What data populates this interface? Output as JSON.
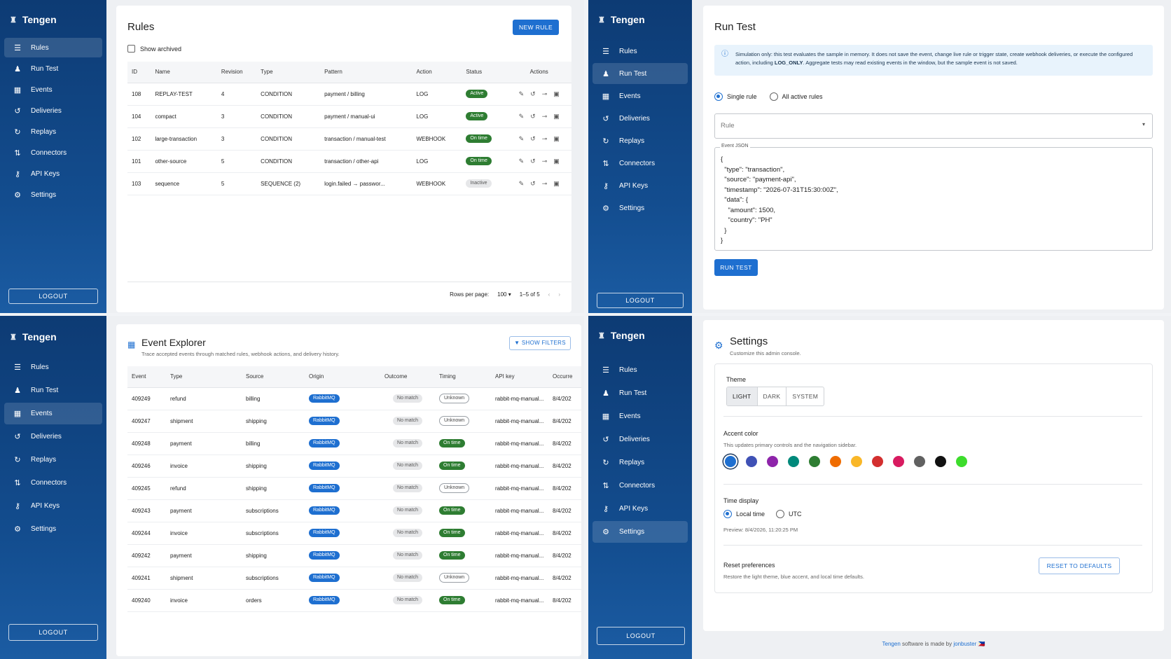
{
  "brand": "Tengen",
  "nav": {
    "rules": "Rules",
    "run_test": "Run Test",
    "events": "Events",
    "deliveries": "Deliveries",
    "replays": "Replays",
    "connectors": "Connectors",
    "api_keys": "API Keys",
    "settings": "Settings",
    "logout": "LOGOUT"
  },
  "rules_page": {
    "title": "Rules",
    "new_rule": "NEW RULE",
    "show_archived": "Show archived",
    "columns": [
      "ID",
      "Name",
      "Revision",
      "Type",
      "Pattern",
      "Action",
      "Status",
      "Actions"
    ],
    "rows": [
      {
        "id": "108",
        "name": "REPLAY-TEST",
        "revision": "4",
        "type": "CONDITION",
        "pattern": "payment / billing",
        "action": "LOG",
        "status": "Active",
        "status_style": "green"
      },
      {
        "id": "104",
        "name": "compact",
        "revision": "3",
        "type": "CONDITION",
        "pattern": "payment / manual-ui",
        "action": "LOG",
        "status": "Active",
        "status_style": "green"
      },
      {
        "id": "102",
        "name": "large-transaction",
        "revision": "3",
        "type": "CONDITION",
        "pattern": "transaction / manual-test",
        "action": "WEBHOOK",
        "status": "On time",
        "status_style": "green"
      },
      {
        "id": "101",
        "name": "other-source",
        "revision": "5",
        "type": "CONDITION",
        "pattern": "transaction / other-api",
        "action": "LOG",
        "status": "On time",
        "status_style": "green"
      },
      {
        "id": "103",
        "name": "sequence",
        "revision": "5",
        "type": "SEQUENCE (2)",
        "pattern": "login.failed → passwor...",
        "action": "WEBHOOK",
        "status": "Inactive",
        "status_style": "grey"
      }
    ],
    "rows_per_page_label": "Rows per page:",
    "rows_per_page": "100",
    "range": "1–5 of 5"
  },
  "run_test_page": {
    "title": "Run Test",
    "info_prefix": "Simulation only: this test evaluates the sample in memory. It does not save the event, change live rule or trigger state, create webhook deliveries, or execute the configured action, including ",
    "info_bold": "LOG_ONLY",
    "info_suffix": ". Aggregate tests may read existing events in the window, but the sample event is not saved.",
    "single_rule": "Single rule",
    "all_active_rules": "All active rules",
    "rule_placeholder": "Rule",
    "event_json_label": "Event JSON",
    "event_json": "{\n  \"type\": \"transaction\",\n  \"source\": \"payment-api\",\n  \"timestamp\": \"2026-07-31T15:30:00Z\",\n  \"data\": {\n    \"amount\": 1500,\n    \"country\": \"PH\"\n  }\n}",
    "run_test_button": "RUN TEST"
  },
  "events_page": {
    "title": "Event Explorer",
    "subtitle": "Trace accepted events through matched rules, webhook actions, and delivery history.",
    "show_filters": "SHOW FILTERS",
    "columns": [
      "Event",
      "Type",
      "Source",
      "Origin",
      "Outcome",
      "Timing",
      "API key",
      "Occurre"
    ],
    "rows": [
      {
        "event": "409249",
        "type": "refund",
        "source": "billing",
        "origin": "RabbitMQ",
        "outcome": "No match",
        "timing": "Unknown",
        "timing_style": "outline",
        "api_key": "rabbit-mq-manual...",
        "occurred": "8/4/202"
      },
      {
        "event": "409247",
        "type": "shipment",
        "source": "shipping",
        "origin": "RabbitMQ",
        "outcome": "No match",
        "timing": "Unknown",
        "timing_style": "outline",
        "api_key": "rabbit-mq-manual...",
        "occurred": "8/4/202"
      },
      {
        "event": "409248",
        "type": "payment",
        "source": "billing",
        "origin": "RabbitMQ",
        "outcome": "No match",
        "timing": "On time",
        "timing_style": "green",
        "api_key": "rabbit-mq-manual...",
        "occurred": "8/4/202"
      },
      {
        "event": "409246",
        "type": "invoice",
        "source": "shipping",
        "origin": "RabbitMQ",
        "outcome": "No match",
        "timing": "On time",
        "timing_style": "green",
        "api_key": "rabbit-mq-manual...",
        "occurred": "8/4/202"
      },
      {
        "event": "409245",
        "type": "refund",
        "source": "shipping",
        "origin": "RabbitMQ",
        "outcome": "No match",
        "timing": "Unknown",
        "timing_style": "outline",
        "api_key": "rabbit-mq-manual...",
        "occurred": "8/4/202"
      },
      {
        "event": "409243",
        "type": "payment",
        "source": "subscriptions",
        "origin": "RabbitMQ",
        "outcome": "No match",
        "timing": "On time",
        "timing_style": "green",
        "api_key": "rabbit-mq-manual...",
        "occurred": "8/4/202"
      },
      {
        "event": "409244",
        "type": "invoice",
        "source": "subscriptions",
        "origin": "RabbitMQ",
        "outcome": "No match",
        "timing": "On time",
        "timing_style": "green",
        "api_key": "rabbit-mq-manual...",
        "occurred": "8/4/202"
      },
      {
        "event": "409242",
        "type": "payment",
        "source": "shipping",
        "origin": "RabbitMQ",
        "outcome": "No match",
        "timing": "On time",
        "timing_style": "green",
        "api_key": "rabbit-mq-manual...",
        "occurred": "8/4/202"
      },
      {
        "event": "409241",
        "type": "shipment",
        "source": "subscriptions",
        "origin": "RabbitMQ",
        "outcome": "No match",
        "timing": "Unknown",
        "timing_style": "outline",
        "api_key": "rabbit-mq-manual...",
        "occurred": "8/4/202"
      },
      {
        "event": "409240",
        "type": "invoice",
        "source": "orders",
        "origin": "RabbitMQ",
        "outcome": "No match",
        "timing": "On time",
        "timing_style": "green",
        "api_key": "rabbit-mq-manual...",
        "occurred": "8/4/202"
      }
    ]
  },
  "settings_page": {
    "title": "Settings",
    "subtitle": "Customize this admin console.",
    "theme_label": "Theme",
    "theme_options": [
      "LIGHT",
      "DARK",
      "SYSTEM"
    ],
    "theme_selected": "LIGHT",
    "accent_label": "Accent color",
    "accent_desc": "This updates primary controls and the navigation sidebar.",
    "accent_colors": [
      "#1e6fd0",
      "#3f51b5",
      "#8e24aa",
      "#00897b",
      "#2e7d32",
      "#ef6c00",
      "#f9b728",
      "#d32f2f",
      "#d81b60",
      "#616161",
      "#111111",
      "#3ddc2c"
    ],
    "accent_selected": 0,
    "time_label": "Time display",
    "time_local": "Local time",
    "time_utc": "UTC",
    "preview": "Preview: 8/4/2026, 11:20:25 PM",
    "reset_label": "Reset preferences",
    "reset_desc": "Restore the light theme, blue accent, and local time defaults.",
    "reset_button": "RESET TO DEFAULTS",
    "footer_link": "Tengen",
    "footer_mid": " software is made by ",
    "footer_author": "jonbuster",
    "footer_flag": "🇵🇭"
  },
  "colors": {
    "sidebar": "#134d8f",
    "primary": "#1e6fd0",
    "success": "#2e7d32"
  },
  "icons": {
    "brand": "app-logo-icon",
    "rules": "rules-icon",
    "run_test": "flask-icon",
    "events": "calendar-icon",
    "deliveries": "history-icon",
    "replays": "replay-icon",
    "connectors": "connector-icon",
    "api_keys": "key-icon",
    "settings": "gear-icon"
  }
}
